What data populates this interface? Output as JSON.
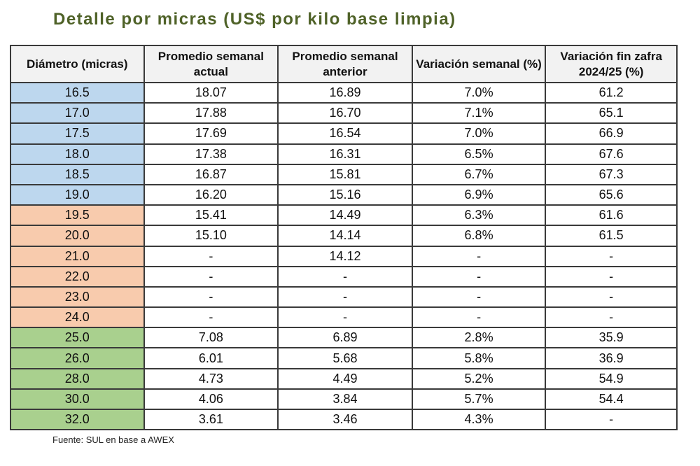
{
  "title": "Detalle por micras (US$ por kilo base limpia)",
  "colors": {
    "blue": "#bdd7ee",
    "orange": "#f8cbad",
    "green": "#a9d08e",
    "title": "#4f6228"
  },
  "headers": [
    "Diámetro (micras)",
    "Promedio semanal actual",
    "Promedio semanal anterior",
    "Variación semanal (%)",
    "Variación fin zafra 2024/25 (%)"
  ],
  "rows": [
    {
      "group": "blue",
      "cells": [
        "16.5",
        "18.07",
        "16.89",
        "7.0%",
        "61.2"
      ]
    },
    {
      "group": "blue",
      "cells": [
        "17.0",
        "17.88",
        "16.70",
        "7.1%",
        "65.1"
      ]
    },
    {
      "group": "blue",
      "cells": [
        "17.5",
        "17.69",
        "16.54",
        "7.0%",
        "66.9"
      ]
    },
    {
      "group": "blue",
      "cells": [
        "18.0",
        "17.38",
        "16.31",
        "6.5%",
        "67.6"
      ]
    },
    {
      "group": "blue",
      "cells": [
        "18.5",
        "16.87",
        "15.81",
        "6.7%",
        "67.3"
      ]
    },
    {
      "group": "blue",
      "cells": [
        "19.0",
        "16.20",
        "15.16",
        "6.9%",
        "65.6"
      ]
    },
    {
      "group": "orange",
      "cells": [
        "19.5",
        "15.41",
        "14.49",
        "6.3%",
        "61.6"
      ]
    },
    {
      "group": "orange",
      "cells": [
        "20.0",
        "15.10",
        "14.14",
        "6.8%",
        "61.5"
      ]
    },
    {
      "group": "orange",
      "cells": [
        "21.0",
        "-",
        "14.12",
        "-",
        "-"
      ]
    },
    {
      "group": "orange",
      "cells": [
        "22.0",
        "-",
        "-",
        "-",
        "-"
      ]
    },
    {
      "group": "orange",
      "cells": [
        "23.0",
        "-",
        "-",
        "-",
        "-"
      ]
    },
    {
      "group": "orange",
      "cells": [
        "24.0",
        "-",
        "-",
        "-",
        "-"
      ]
    },
    {
      "group": "green",
      "cells": [
        "25.0",
        "7.08",
        "6.89",
        "2.8%",
        "35.9"
      ]
    },
    {
      "group": "green",
      "cells": [
        "26.0",
        "6.01",
        "5.68",
        "5.8%",
        "36.9"
      ]
    },
    {
      "group": "green",
      "cells": [
        "28.0",
        "4.73",
        "4.49",
        "5.2%",
        "54.9"
      ]
    },
    {
      "group": "green",
      "cells": [
        "30.0",
        "4.06",
        "3.84",
        "5.7%",
        "54.4"
      ]
    },
    {
      "group": "green",
      "cells": [
        "32.0",
        "3.61",
        "3.46",
        "4.3%",
        "-"
      ]
    }
  ],
  "source": "Fuente: SUL en base a AWEX"
}
